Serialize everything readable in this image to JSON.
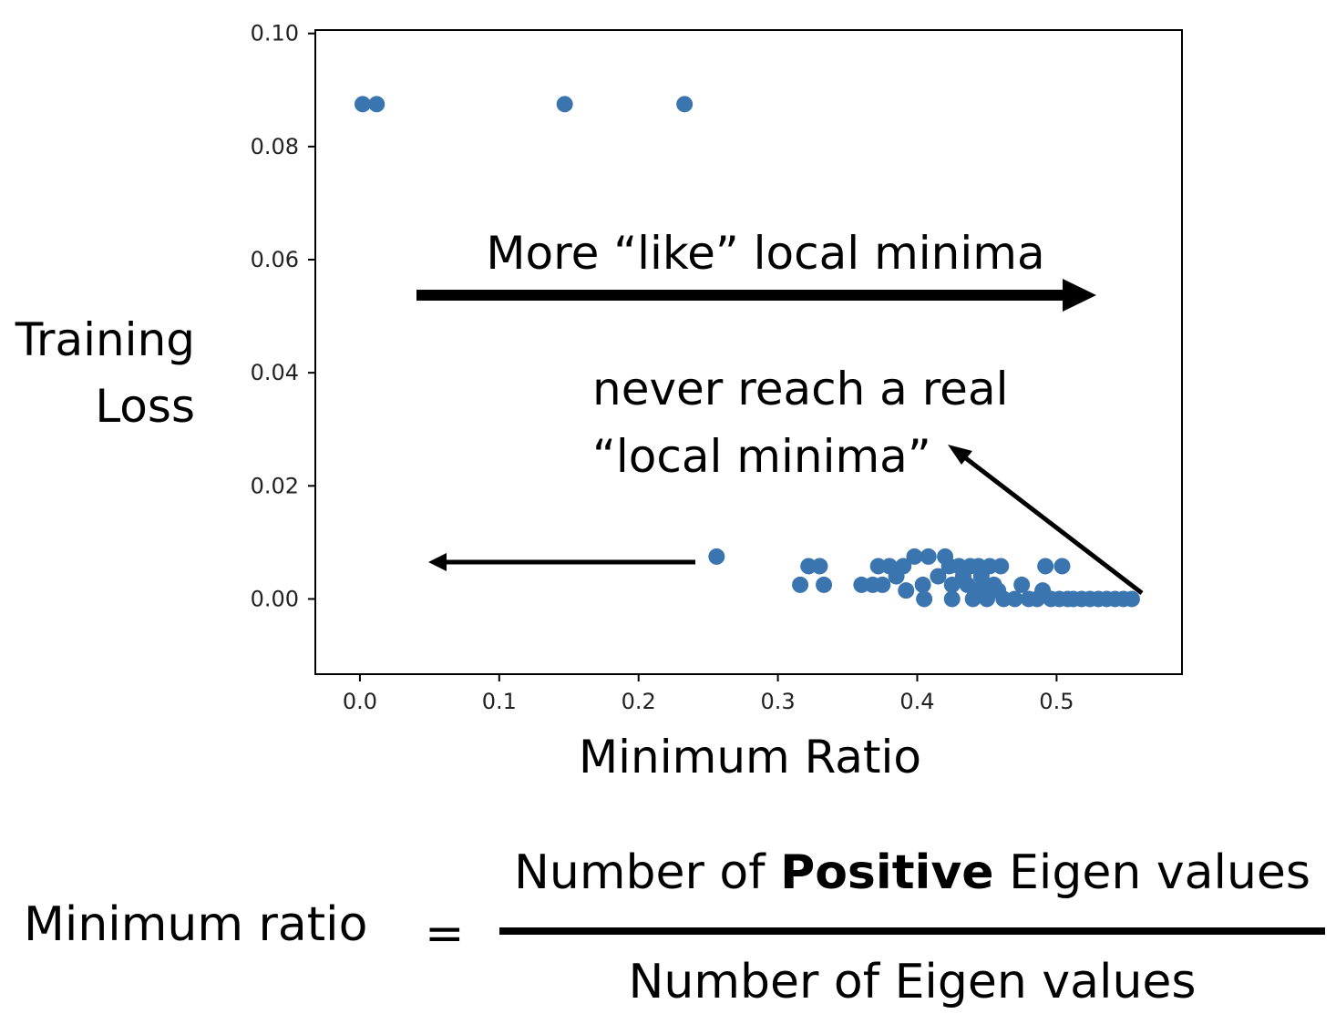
{
  "chart_data": {
    "type": "scatter",
    "xlabel": "Minimum Ratio",
    "ylabel_lines": [
      "Training",
      "Loss"
    ],
    "xlim": [
      -0.032,
      0.59
    ],
    "ylim": [
      -0.0133,
      0.1006
    ],
    "xticks": [
      "0.0",
      "0.1",
      "0.2",
      "0.3",
      "0.4",
      "0.5"
    ],
    "yticks": [
      "0.10",
      "0.08",
      "0.06",
      "0.04",
      "0.02",
      "0.00"
    ],
    "marker_color": "#3b75af",
    "points": [
      [
        0.002,
        0.0875
      ],
      [
        0.012,
        0.0875
      ],
      [
        0.147,
        0.0875
      ],
      [
        0.233,
        0.0875
      ],
      [
        0.256,
        0.0075
      ],
      [
        0.316,
        0.0025
      ],
      [
        0.322,
        0.0058
      ],
      [
        0.33,
        0.0058
      ],
      [
        0.333,
        0.0025
      ],
      [
        0.36,
        0.0025
      ],
      [
        0.368,
        0.0025
      ],
      [
        0.372,
        0.0058
      ],
      [
        0.375,
        0.0025
      ],
      [
        0.38,
        0.0058
      ],
      [
        0.385,
        0.004
      ],
      [
        0.39,
        0.0058
      ],
      [
        0.392,
        0.0015
      ],
      [
        0.398,
        0.0075
      ],
      [
        0.408,
        0.0075
      ],
      [
        0.404,
        0.0025
      ],
      [
        0.405,
        0.0
      ],
      [
        0.415,
        0.004
      ],
      [
        0.42,
        0.0075
      ],
      [
        0.423,
        0.0058
      ],
      [
        0.425,
        0.0025
      ],
      [
        0.425,
        0.0
      ],
      [
        0.43,
        0.0058
      ],
      [
        0.433,
        0.004
      ],
      [
        0.436,
        0.0025
      ],
      [
        0.438,
        0.0058
      ],
      [
        0.44,
        0.0
      ],
      [
        0.442,
        0.0015
      ],
      [
        0.444,
        0.0058
      ],
      [
        0.446,
        0.004
      ],
      [
        0.448,
        0.0025
      ],
      [
        0.45,
        0.0
      ],
      [
        0.452,
        0.0058
      ],
      [
        0.455,
        0.0025
      ],
      [
        0.458,
        0.0015
      ],
      [
        0.46,
        0.0058
      ],
      [
        0.462,
        0.0
      ],
      [
        0.47,
        0.0
      ],
      [
        0.475,
        0.0025
      ],
      [
        0.48,
        0.0
      ],
      [
        0.486,
        0.0
      ],
      [
        0.49,
        0.0015
      ],
      [
        0.492,
        0.0058
      ],
      [
        0.496,
        0.0
      ],
      [
        0.502,
        0.0
      ],
      [
        0.504,
        0.0058
      ],
      [
        0.508,
        0.0
      ],
      [
        0.512,
        0.0
      ],
      [
        0.518,
        0.0
      ],
      [
        0.524,
        0.0
      ],
      [
        0.53,
        0.0
      ],
      [
        0.536,
        0.0
      ],
      [
        0.542,
        0.0
      ],
      [
        0.548,
        0.0
      ],
      [
        0.554,
        0.0
      ]
    ],
    "annotations": [
      {
        "text": "More “like” local minima"
      },
      {
        "lines": [
          "never reach a real",
          "“local minima”"
        ]
      }
    ]
  },
  "formula": {
    "lhs": "Minimum ratio",
    "equals": "=",
    "numerator_before": "Number of ",
    "numerator_bold": "Positive",
    "numerator_after": " Eigen values",
    "denominator": "Number of Eigen values"
  }
}
